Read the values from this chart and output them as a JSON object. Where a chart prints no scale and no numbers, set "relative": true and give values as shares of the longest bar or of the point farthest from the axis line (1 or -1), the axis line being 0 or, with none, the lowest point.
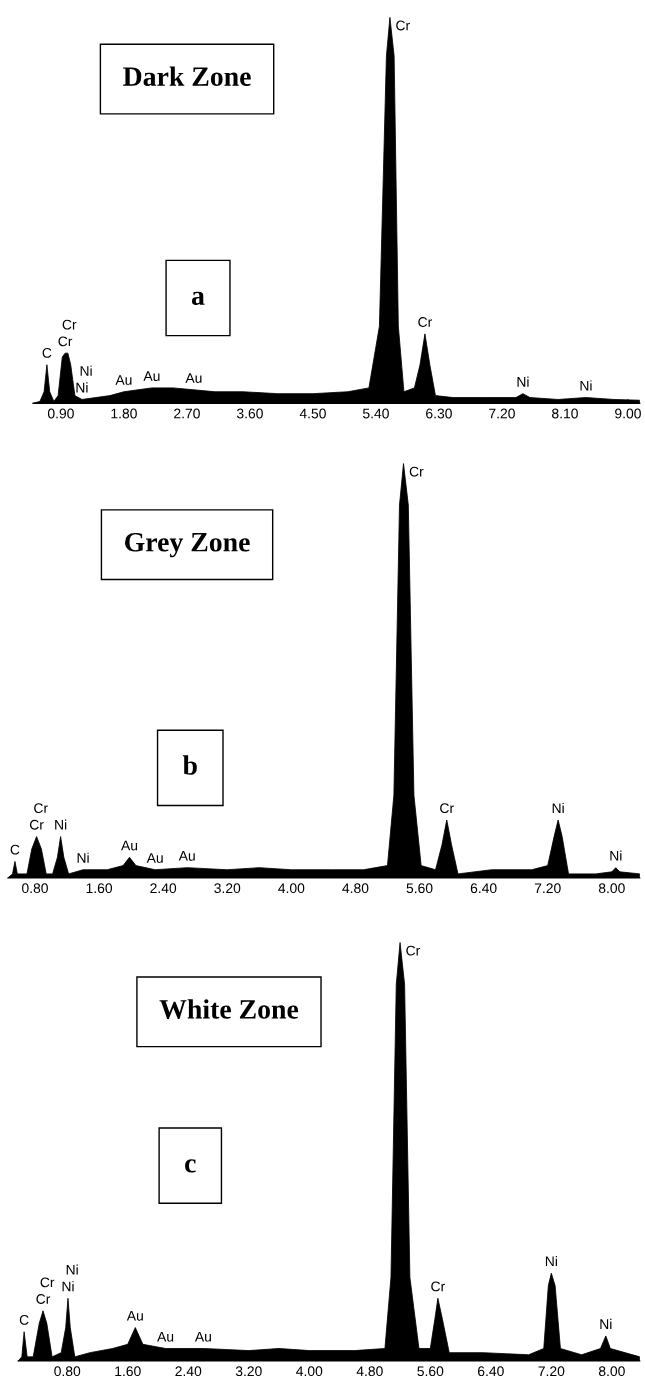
{
  "chart_data": [
    {
      "type": "area",
      "title": "Dark Zone",
      "relative": true,
      "color": "#000000",
      "xlim": [
        0.5,
        9.17
      ],
      "xticks": [
        {
          "value": 0.9,
          "label": "0.90"
        },
        {
          "value": 1.8,
          "label": "1.80"
        },
        {
          "value": 2.7,
          "label": "2.70"
        },
        {
          "value": 3.6,
          "label": "3.60"
        },
        {
          "value": 4.5,
          "label": "4.50"
        },
        {
          "value": 5.4,
          "label": "5.40"
        },
        {
          "value": 6.3,
          "label": "6.30"
        },
        {
          "value": 7.2,
          "label": "7.20"
        },
        {
          "value": 8.1,
          "label": "8.10"
        },
        {
          "value": 9.0,
          "label": "9.00"
        }
      ],
      "x": [
        0.5,
        0.6,
        0.66,
        0.7,
        0.74,
        0.8,
        0.86,
        0.92,
        0.96,
        1.0,
        1.04,
        1.1,
        1.2,
        1.4,
        1.6,
        1.8,
        2.0,
        2.2,
        2.5,
        2.8,
        3.1,
        3.5,
        4.0,
        4.5,
        5.0,
        5.3,
        5.45,
        5.55,
        5.6,
        5.66,
        5.72,
        5.8,
        5.95,
        6.03,
        6.1,
        6.17,
        6.25,
        6.5,
        7.0,
        7.4,
        7.5,
        7.6,
        8.0,
        8.4,
        8.8,
        9.17
      ],
      "values": [
        0.0,
        0.005,
        0.03,
        0.1,
        0.03,
        0.005,
        0.02,
        0.12,
        0.13,
        0.13,
        0.1,
        0.02,
        0.01,
        0.015,
        0.02,
        0.03,
        0.035,
        0.04,
        0.04,
        0.035,
        0.03,
        0.03,
        0.025,
        0.025,
        0.03,
        0.04,
        0.2,
        0.9,
        1.0,
        0.9,
        0.2,
        0.03,
        0.04,
        0.1,
        0.18,
        0.1,
        0.02,
        0.015,
        0.015,
        0.015,
        0.025,
        0.015,
        0.01,
        0.015,
        0.01,
        0.008
      ],
      "annotations": [
        "a",
        {
          "text": "C",
          "x": 0.7,
          "y": 0.1
        },
        {
          "text": "Cr",
          "x": 0.96,
          "y": 0.13
        },
        {
          "text": "Cr",
          "x": 0.96,
          "y": 0.13
        },
        {
          "text": "Ni",
          "x": 1.2,
          "y": 0.01
        },
        {
          "text": "Ni",
          "x": 1.2,
          "y": 0.01
        },
        {
          "text": "Au",
          "x": 1.8,
          "y": 0.03
        },
        {
          "text": "Au",
          "x": 2.2,
          "y": 0.04
        },
        {
          "text": "Au",
          "x": 2.8,
          "y": 0.035
        },
        {
          "text": "Cr",
          "x": 5.6,
          "y": 1.0
        },
        {
          "text": "Cr",
          "x": 6.1,
          "y": 0.18
        },
        {
          "text": "Ni",
          "x": 7.5,
          "y": 0.025
        },
        {
          "text": "Ni",
          "x": 8.4,
          "y": 0.015
        }
      ]
    },
    {
      "type": "area",
      "title": "Grey Zone",
      "relative": true,
      "color": "#000000",
      "xlim": [
        0.46,
        8.35
      ],
      "xticks": [
        {
          "value": 0.8,
          "label": "0.80"
        },
        {
          "value": 1.6,
          "label": "1.60"
        },
        {
          "value": 2.4,
          "label": "2.40"
        },
        {
          "value": 3.2,
          "label": "3.20"
        },
        {
          "value": 4.0,
          "label": "4.00"
        },
        {
          "value": 4.8,
          "label": "4.80"
        },
        {
          "value": 5.6,
          "label": "5.60"
        },
        {
          "value": 6.4,
          "label": "6.40"
        },
        {
          "value": 7.2,
          "label": "7.20"
        },
        {
          "value": 8.0,
          "label": "8.00"
        }
      ],
      "x": [
        0.46,
        0.52,
        0.55,
        0.58,
        0.7,
        0.76,
        0.82,
        0.88,
        0.94,
        1.02,
        1.08,
        1.12,
        1.16,
        1.22,
        1.4,
        1.7,
        1.9,
        1.98,
        2.06,
        2.3,
        2.7,
        3.2,
        3.6,
        4.0,
        4.5,
        4.9,
        5.2,
        5.28,
        5.35,
        5.4,
        5.46,
        5.53,
        5.62,
        5.8,
        5.88,
        5.94,
        6.0,
        6.08,
        6.5,
        7.0,
        7.2,
        7.28,
        7.33,
        7.38,
        7.46,
        7.8,
        8.0,
        8.05,
        8.1,
        8.35
      ],
      "values": [
        0.0,
        0.01,
        0.04,
        0.01,
        0.01,
        0.07,
        0.1,
        0.07,
        0.01,
        0.01,
        0.05,
        0.1,
        0.05,
        0.01,
        0.02,
        0.02,
        0.03,
        0.05,
        0.03,
        0.02,
        0.025,
        0.02,
        0.025,
        0.02,
        0.02,
        0.02,
        0.03,
        0.2,
        0.9,
        1.0,
        0.9,
        0.2,
        0.03,
        0.02,
        0.08,
        0.14,
        0.08,
        0.01,
        0.02,
        0.02,
        0.03,
        0.1,
        0.14,
        0.1,
        0.01,
        0.01,
        0.015,
        0.025,
        0.015,
        0.01
      ],
      "annotations": [
        "b",
        {
          "text": "C",
          "x": 0.55,
          "y": 0.04
        },
        {
          "text": "Cr",
          "x": 0.82,
          "y": 0.1
        },
        {
          "text": "Cr",
          "x": 0.82,
          "y": 0.1
        },
        {
          "text": "Ni",
          "x": 1.12,
          "y": 0.1
        },
        {
          "text": "Ni",
          "x": 1.4,
          "y": 0.02
        },
        {
          "text": "Au",
          "x": 1.98,
          "y": 0.05
        },
        {
          "text": "Au",
          "x": 2.3,
          "y": 0.02
        },
        {
          "text": "Au",
          "x": 2.7,
          "y": 0.025
        },
        {
          "text": "Cr",
          "x": 5.4,
          "y": 1.0
        },
        {
          "text": "Cr",
          "x": 5.94,
          "y": 0.14
        },
        {
          "text": "Ni",
          "x": 7.33,
          "y": 0.14
        },
        {
          "text": "Ni",
          "x": 8.05,
          "y": 0.025
        }
      ]
    },
    {
      "type": "area",
      "title": "White Zone",
      "relative": true,
      "color": "#000000",
      "xlim": [
        0.15,
        8.37
      ],
      "xticks": [
        {
          "value": 0.8,
          "label": "0.80"
        },
        {
          "value": 1.6,
          "label": "1.60"
        },
        {
          "value": 2.4,
          "label": "2.40"
        },
        {
          "value": 3.2,
          "label": "3.20"
        },
        {
          "value": 4.0,
          "label": "4.00"
        },
        {
          "value": 4.8,
          "label": "4.80"
        },
        {
          "value": 5.6,
          "label": "5.60"
        },
        {
          "value": 6.4,
          "label": "6.40"
        },
        {
          "value": 7.2,
          "label": "7.20"
        },
        {
          "value": 8.0,
          "label": "8.00"
        }
      ],
      "x": [
        0.15,
        0.2,
        0.23,
        0.27,
        0.35,
        0.43,
        0.48,
        0.53,
        0.6,
        0.72,
        0.78,
        0.81,
        0.84,
        0.9,
        1.1,
        1.4,
        1.6,
        1.7,
        1.8,
        2.1,
        2.6,
        3.2,
        3.6,
        4.0,
        4.6,
        5.0,
        5.08,
        5.15,
        5.2,
        5.26,
        5.33,
        5.45,
        5.6,
        5.66,
        5.7,
        5.76,
        5.85,
        6.3,
        6.9,
        7.1,
        7.16,
        7.2,
        7.25,
        7.32,
        7.6,
        7.85,
        7.92,
        7.98,
        8.37
      ],
      "values": [
        0.0,
        0.01,
        0.07,
        0.01,
        0.01,
        0.09,
        0.12,
        0.09,
        0.01,
        0.02,
        0.08,
        0.15,
        0.08,
        0.01,
        0.02,
        0.03,
        0.04,
        0.08,
        0.04,
        0.03,
        0.03,
        0.025,
        0.03,
        0.025,
        0.025,
        0.03,
        0.2,
        0.9,
        1.0,
        0.9,
        0.2,
        0.03,
        0.03,
        0.1,
        0.15,
        0.1,
        0.02,
        0.02,
        0.015,
        0.03,
        0.18,
        0.21,
        0.18,
        0.03,
        0.015,
        0.03,
        0.06,
        0.03,
        0.01
      ],
      "annotations": [
        "c",
        {
          "text": "C",
          "x": 0.23,
          "y": 0.07
        },
        {
          "text": "Cr",
          "x": 0.48,
          "y": 0.12
        },
        {
          "text": "Cr",
          "x": 0.48,
          "y": 0.12
        },
        {
          "text": "Ni",
          "x": 0.81,
          "y": 0.15
        },
        {
          "text": "Ni",
          "x": 0.81,
          "y": 0.15
        },
        {
          "text": "Au",
          "x": 1.7,
          "y": 0.08
        },
        {
          "text": "Au",
          "x": 2.1,
          "y": 0.03
        },
        {
          "text": "Au",
          "x": 2.6,
          "y": 0.03
        },
        {
          "text": "Cr",
          "x": 5.2,
          "y": 1.0
        },
        {
          "text": "Cr",
          "x": 5.7,
          "y": 0.15
        },
        {
          "text": "Ni",
          "x": 7.2,
          "y": 0.21
        },
        {
          "text": "Ni",
          "x": 7.92,
          "y": 0.06
        }
      ]
    }
  ]
}
